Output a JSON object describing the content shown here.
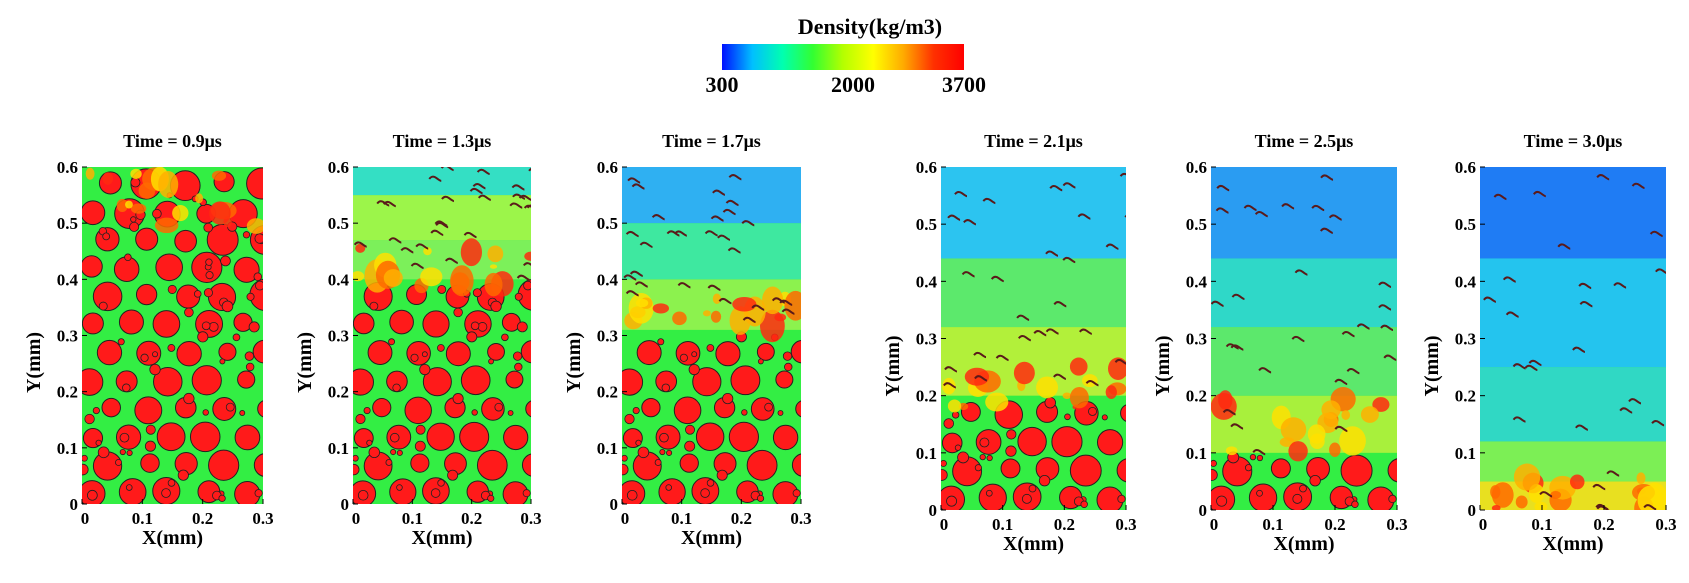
{
  "colorbar": {
    "title": "Density(kg/m3)",
    "ticks": [
      "300",
      "2000",
      "3700"
    ],
    "colors": [
      "#0010ff",
      "#00bfff",
      "#00ffb0",
      "#32ff32",
      "#b4ff00",
      "#ffff00",
      "#ffaa00",
      "#ff3000",
      "#ff0000"
    ]
  },
  "colors": {
    "particle": "#ff1a1a",
    "binder": "#33ee44",
    "gas_low": "#1e6eff",
    "gas_mid": "#22d8e8",
    "outline": "#222222"
  },
  "chart_data": [
    {
      "type": "heatmap",
      "title": "Time = 0.9μs",
      "xlabel": "X(mm)",
      "ylabel": "Y(mm)",
      "xlim": [
        0,
        0.3
      ],
      "ylim": [
        0,
        0.6
      ],
      "xticks": [
        "0",
        "0.1",
        "0.2",
        "0.3"
      ],
      "yticks": [
        "0",
        "0.1",
        "0.2",
        "0.3",
        "0.4",
        "0.5",
        "0.6"
      ],
      "reaction_front_y": 0.6,
      "gas_layers": [],
      "burning_zone": [
        0.48,
        0.6
      ]
    },
    {
      "type": "heatmap",
      "title": "Time = 1.3μs",
      "xlabel": "X(mm)",
      "ylabel": "Y(mm)",
      "xlim": [
        0,
        0.3
      ],
      "ylim": [
        0,
        0.6
      ],
      "xticks": [
        "0",
        "0.1",
        "0.2",
        "0.3"
      ],
      "yticks": [
        "0",
        "0.1",
        "0.2",
        "0.3",
        "0.4",
        "0.5",
        "0.6"
      ],
      "reaction_front_y": 0.4,
      "gas_layers": [
        [
          0.4,
          0.47,
          "#7cf05a"
        ],
        [
          0.47,
          0.55,
          "#9cf54a"
        ],
        [
          0.55,
          0.6,
          "#34dfc4"
        ]
      ],
      "burning_zone": [
        0.38,
        0.46
      ]
    },
    {
      "type": "heatmap",
      "title": "Time = 1.7μs",
      "xlabel": "X(mm)",
      "ylabel": "Y(mm)",
      "xlim": [
        0,
        0.3
      ],
      "ylim": [
        0,
        0.6
      ],
      "xticks": [
        "0",
        "0.1",
        "0.2",
        "0.3"
      ],
      "yticks": [
        "0",
        "0.1",
        "0.2",
        "0.3",
        "0.4",
        "0.5",
        "0.6"
      ],
      "reaction_front_y": 0.31,
      "gas_layers": [
        [
          0.31,
          0.4,
          "#8cf24e"
        ],
        [
          0.4,
          0.5,
          "#3ee8a0"
        ],
        [
          0.5,
          0.6,
          "#2fb0f2"
        ]
      ],
      "burning_zone": [
        0.31,
        0.37
      ]
    },
    {
      "type": "heatmap",
      "title": "Time = 2.1μs",
      "xlabel": "X(mm)",
      "ylabel": "Y(mm)",
      "xlim": [
        0,
        0.3
      ],
      "ylim": [
        0,
        0.6
      ],
      "xticks": [
        "0",
        "0.1",
        "0.2",
        "0.3"
      ],
      "yticks": [
        "0",
        "0.1",
        "0.2",
        "0.3",
        "0.4",
        "0.5",
        "0.6"
      ],
      "reaction_front_y": 0.2,
      "gas_layers": [
        [
          0.2,
          0.32,
          "#b2f03a"
        ],
        [
          0.32,
          0.44,
          "#5ce96c"
        ],
        [
          0.44,
          0.6,
          "#2cc4f0"
        ]
      ],
      "burning_zone": [
        0.18,
        0.26
      ]
    },
    {
      "type": "heatmap",
      "title": "Time = 2.5μs",
      "xlabel": "X(mm)",
      "ylabel": "Y(mm)",
      "xlim": [
        0,
        0.3
      ],
      "ylim": [
        0,
        0.6
      ],
      "xticks": [
        "0",
        "0.1",
        "0.2",
        "0.3"
      ],
      "yticks": [
        "0",
        "0.1",
        "0.2",
        "0.3",
        "0.4",
        "0.5",
        "0.6"
      ],
      "reaction_front_y": 0.1,
      "gas_layers": [
        [
          0.1,
          0.2,
          "#a8f03c"
        ],
        [
          0.2,
          0.32,
          "#5ce86c"
        ],
        [
          0.32,
          0.44,
          "#2fd8c8"
        ],
        [
          0.44,
          0.6,
          "#2a9cf2"
        ]
      ],
      "burning_zone": [
        0.1,
        0.2
      ]
    },
    {
      "type": "heatmap",
      "title": "Time = 3.0μs",
      "xlabel": "X(mm)",
      "ylabel": "Y(mm)",
      "xlim": [
        0,
        0.3
      ],
      "ylim": [
        0,
        0.6
      ],
      "xticks": [
        "0",
        "0.1",
        "0.2",
        "0.3"
      ],
      "yticks": [
        "0",
        "0.1",
        "0.2",
        "0.3",
        "0.4",
        "0.5",
        "0.6"
      ],
      "reaction_front_y": 0.0,
      "gas_layers": [
        [
          0.0,
          0.05,
          "#e8e020"
        ],
        [
          0.05,
          0.12,
          "#7cef55"
        ],
        [
          0.12,
          0.25,
          "#30d8c4"
        ],
        [
          0.25,
          0.44,
          "#24c4ee"
        ],
        [
          0.44,
          0.6,
          "#1f7cf4"
        ]
      ],
      "burning_zone": [
        0.0,
        0.06
      ]
    }
  ]
}
